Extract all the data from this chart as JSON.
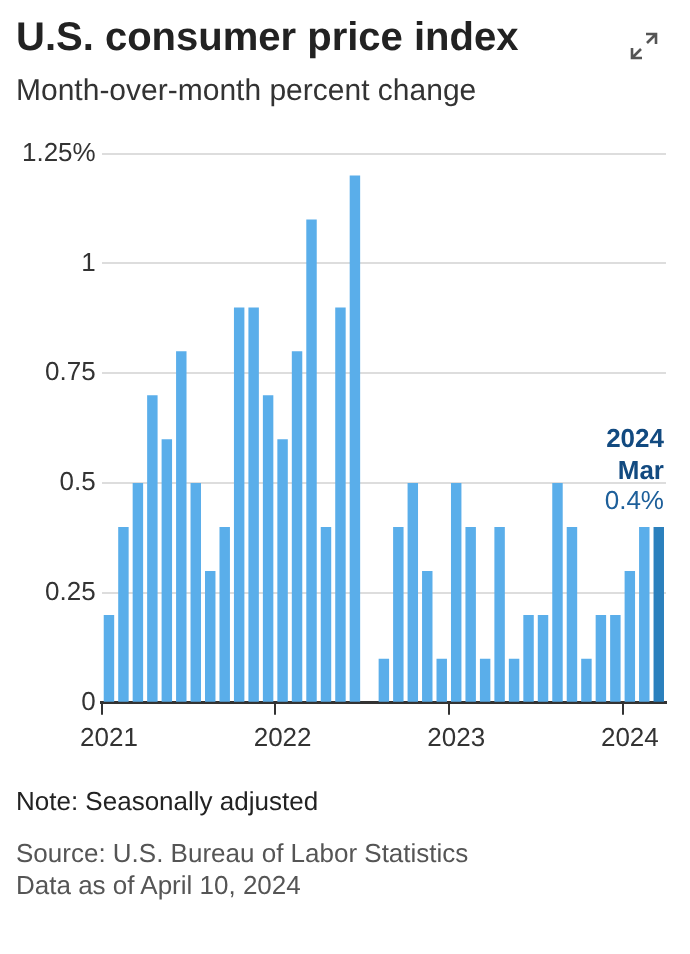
{
  "chart_data": {
    "type": "bar",
    "title": "U.S. consumer price index",
    "subtitle": "Month-over-month percent change",
    "categories": [
      "2021",
      null,
      null,
      null,
      null,
      null,
      null,
      null,
      null,
      null,
      null,
      null,
      "2022",
      null,
      null,
      null,
      null,
      null,
      null,
      null,
      null,
      null,
      null,
      null,
      "2023",
      null,
      null,
      null,
      null,
      null,
      null,
      null,
      null,
      null,
      null,
      null,
      "2024",
      null,
      null
    ],
    "values": [
      0.2,
      0.4,
      0.5,
      0.7,
      0.6,
      0.8,
      0.5,
      0.3,
      0.4,
      0.9,
      0.9,
      0.7,
      0.6,
      0.8,
      1.1,
      0.4,
      0.9,
      1.2,
      0.0,
      0.1,
      0.4,
      0.5,
      0.3,
      0.1,
      0.5,
      0.4,
      0.1,
      0.4,
      0.1,
      0.2,
      0.2,
      0.5,
      0.4,
      0.1,
      0.2,
      0.2,
      0.3,
      0.4,
      0.4
    ],
    "colors": [
      "#5aaeea",
      "#5aaeea",
      "#5aaeea",
      "#5aaeea",
      "#5aaeea",
      "#5aaeea",
      "#5aaeea",
      "#5aaeea",
      "#5aaeea",
      "#5aaeea",
      "#5aaeea",
      "#5aaeea",
      "#5aaeea",
      "#5aaeea",
      "#5aaeea",
      "#5aaeea",
      "#5aaeea",
      "#5aaeea",
      "#5aaeea",
      "#5aaeea",
      "#5aaeea",
      "#5aaeea",
      "#5aaeea",
      "#5aaeea",
      "#5aaeea",
      "#5aaeea",
      "#5aaeea",
      "#5aaeea",
      "#5aaeea",
      "#5aaeea",
      "#5aaeea",
      "#5aaeea",
      "#5aaeea",
      "#5aaeea",
      "#5aaeea",
      "#5aaeea",
      "#5aaeea",
      "#5aaeea",
      "#2b80bd"
    ],
    "value_labels": [
      null,
      null,
      null,
      null,
      null,
      null,
      null,
      null,
      null,
      null,
      null,
      null,
      null,
      null,
      null,
      null,
      null,
      null,
      null,
      null,
      null,
      null,
      null,
      null,
      null,
      null,
      null,
      null,
      null,
      null,
      null,
      null,
      null,
      null,
      null,
      null,
      null,
      null,
      "0.4%"
    ],
    "ylim": [
      0,
      1.25
    ],
    "yticks": [
      0,
      0.25,
      0.5,
      0.75,
      1,
      {
        "value": 1.25,
        "label": "1.25%"
      }
    ],
    "grid": "y",
    "annotations": [
      {
        "text": "2024",
        "y": 0.4
      },
      {
        "text": "Mar",
        "y": 0.4
      },
      "Note: Seasonally adjusted",
      "Source: U.S. Bureau of Labor Statistics",
      "Data as of April 10, 2024"
    ]
  }
}
